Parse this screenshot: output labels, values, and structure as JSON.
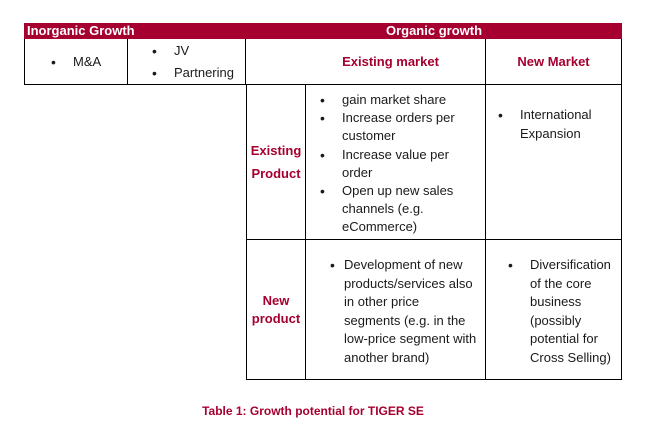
{
  "header": {
    "inorganic": "Inorganic Growth",
    "organic": "Organic growth"
  },
  "inorganic_cells": {
    "left": [
      "M&A"
    ],
    "right": [
      "JV",
      "Partnering"
    ]
  },
  "columns": {
    "existing_market": "Existing market",
    "new_market": "New Market"
  },
  "rows": {
    "existing_product": {
      "label_line1": "Existing",
      "label_line2": "Product"
    },
    "new_product": {
      "label_line1": "New",
      "label_line2": "product"
    }
  },
  "cells": {
    "existing_product_existing_market": [
      "gain market share",
      "Increase orders per customer",
      "Increase value per order",
      "Open up new sales channels (e.g. eCommerce)"
    ],
    "existing_product_new_market": [
      "International Expansion"
    ],
    "new_product_existing_market": [
      "Development of new products/services also in other price segments (e.g. in the low-price segment with another brand)"
    ],
    "new_product_new_market": [
      "Diversification of the core business (possibly potential for Cross Selling)"
    ]
  },
  "caption": "Table 1: Growth potential for TIGER SE",
  "colors": {
    "accent": "#a5002f",
    "border": "#000000"
  }
}
